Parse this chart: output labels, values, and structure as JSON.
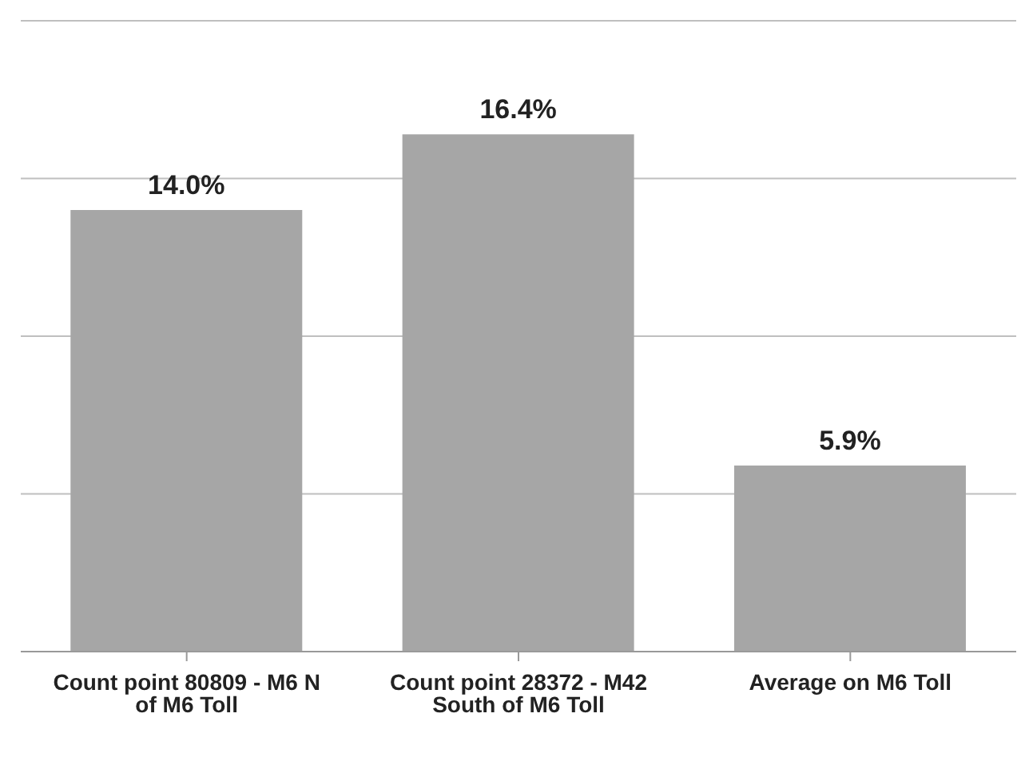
{
  "chart_data": {
    "type": "bar",
    "categories": [
      "Count point 80809 - M6 N of M6 Toll",
      "Count point 28372 - M42 South of M6 Toll",
      "Average on M6 Toll"
    ],
    "values": [
      14.0,
      16.4,
      5.9
    ],
    "value_labels": [
      "14.0%",
      "16.4%",
      "5.9%"
    ],
    "color": "#a6a6a6",
    "ylim": [
      0,
      20
    ],
    "yticks": [
      {
        "value": 0,
        "label": null
      },
      {
        "value": 5,
        "label": null
      },
      {
        "value": 10,
        "label": null
      },
      {
        "value": 15,
        "label": null
      },
      {
        "value": 20,
        "label": null
      }
    ],
    "tick_labels": "x",
    "grid": "y"
  }
}
